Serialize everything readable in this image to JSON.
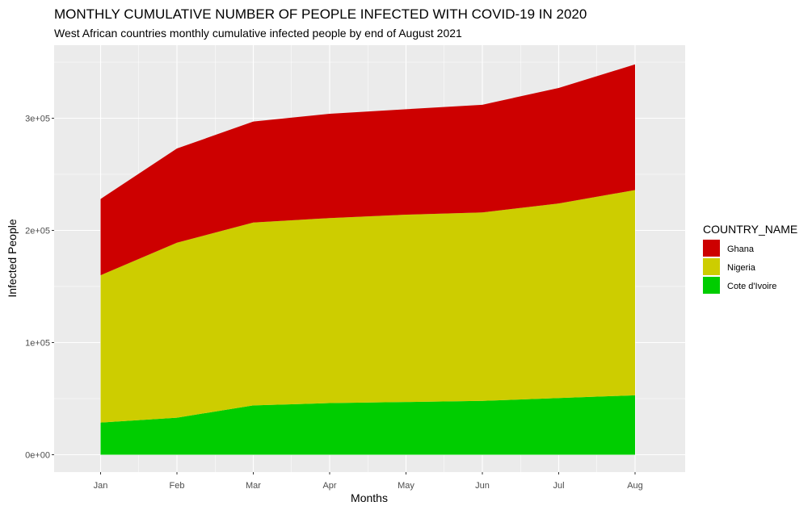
{
  "chart_data": {
    "type": "area",
    "stacked": true,
    "title": "MONTHLY CUMULATIVE NUMBER OF PEOPLE INFECTED WITH COVID-19 IN 2020",
    "subtitle": "West African countries monthly cumulative infected people by end of August 2021",
    "xlabel": "Months",
    "ylabel": "Infected People",
    "categories": [
      "Jan",
      "Feb",
      "Mar",
      "Apr",
      "May",
      "Jun",
      "Jul",
      "Aug"
    ],
    "ylim": [
      0,
      350000
    ],
    "yticks": [
      0,
      100000,
      200000,
      300000
    ],
    "ytick_labels": [
      "0e+00",
      "1e+05",
      "2e+05",
      "3e+05"
    ],
    "grid": true,
    "legend": {
      "title": "COUNTRY_NAME",
      "position": "right"
    },
    "series": [
      {
        "name": "Cote d'Ivoire",
        "color": "#00cd00",
        "values": [
          28700,
          33000,
          44000,
          46000,
          47000,
          48000,
          50500,
          53000
        ]
      },
      {
        "name": "Nigeria",
        "color": "#cdcd00",
        "values": [
          131300,
          156000,
          163000,
          165000,
          167000,
          168000,
          173500,
          183000
        ]
      },
      {
        "name": "Ghana",
        "color": "#cd0000",
        "values": [
          68000,
          84000,
          90000,
          93000,
          94000,
          96000,
          103000,
          112000
        ]
      }
    ],
    "legend_order": [
      "Ghana",
      "Nigeria",
      "Cote d'Ivoire"
    ]
  }
}
